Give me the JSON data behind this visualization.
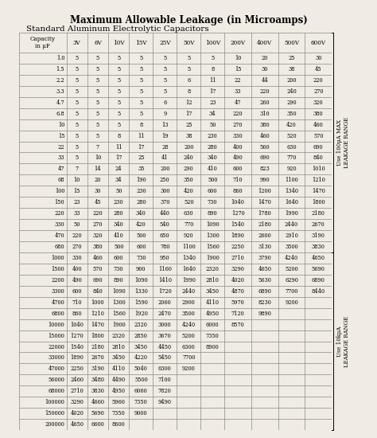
{
  "title": "Maximum Allowable Leakage (in Microamps)",
  "subtitle": "Standard Aluminum Electrolytic Capacitors",
  "columns": [
    "Capacity\nin μF",
    "3V",
    "6V",
    "10V",
    "15V",
    "25V",
    "50V",
    "100V",
    "200V",
    "400V",
    "500V",
    "600V"
  ],
  "rows": [
    [
      "1.0",
      "5",
      "5",
      "5",
      "5",
      "5",
      "5",
      "5",
      "10",
      "20",
      "25",
      "30"
    ],
    [
      "1.5",
      "5",
      "5",
      "5",
      "5",
      "5",
      "5",
      "8",
      "15",
      "30",
      "38",
      "45"
    ],
    [
      "2.2",
      "5",
      "5",
      "5",
      "5",
      "5",
      "6",
      "11",
      "22",
      "44",
      "200",
      "220"
    ],
    [
      "3.3",
      "5",
      "5",
      "5",
      "5",
      "5",
      "8",
      "17",
      "33",
      "220",
      "240",
      "270"
    ],
    [
      "4.7",
      "5",
      "5",
      "5",
      "5",
      "6",
      "12",
      "23",
      "47",
      "260",
      "290",
      "320"
    ],
    [
      "6.8",
      "5",
      "5",
      "5",
      "5",
      "9",
      "17",
      "34",
      "220",
      "310",
      "350",
      "380"
    ],
    [
      "10",
      "5",
      "5",
      "5",
      "8",
      "13",
      "25",
      "50",
      "270",
      "380",
      "420",
      "460"
    ],
    [
      "15",
      "5",
      "5",
      "8",
      "11",
      "19",
      "38",
      "230",
      "330",
      "460",
      "520",
      "570"
    ],
    [
      "22",
      "5",
      "7",
      "11",
      "17",
      "28",
      "200",
      "280",
      "400",
      "560",
      "630",
      "690"
    ],
    [
      "33",
      "5",
      "10",
      "17",
      "25",
      "41",
      "240",
      "340",
      "490",
      "690",
      "770",
      "840"
    ],
    [
      "47",
      "7",
      "14",
      "24",
      "35",
      "200",
      "290",
      "410",
      "600",
      "823",
      "920",
      "1010"
    ],
    [
      "68",
      "10",
      "20",
      "34",
      "190",
      "250",
      "350",
      "500",
      "710",
      "990",
      "1100",
      "1210"
    ],
    [
      "100",
      "15",
      "30",
      "50",
      "230",
      "300",
      "420",
      "600",
      "860",
      "1200",
      "1340",
      "1470"
    ],
    [
      "150",
      "23",
      "45",
      "230",
      "280",
      "370",
      "520",
      "730",
      "1040",
      "1470",
      "1640",
      "1800"
    ],
    [
      "220",
      "33",
      "220",
      "280",
      "340",
      "440",
      "630",
      "890",
      "1270",
      "1780",
      "1990",
      "2180"
    ],
    [
      "330",
      "50",
      "270",
      "340",
      "420",
      "540",
      "770",
      "1090",
      "1540",
      "2180",
      "2440",
      "2670"
    ],
    [
      "470",
      "220",
      "320",
      "410",
      "500",
      "650",
      "920",
      "1300",
      "1890",
      "2600",
      "2910",
      "3190"
    ],
    [
      "680",
      "270",
      "380",
      "500",
      "600",
      "780",
      "1100",
      "1560",
      "2250",
      "3130",
      "3500",
      "3830"
    ],
    [
      "1000",
      "330",
      "460",
      "600",
      "730",
      "950",
      "1340",
      "1900",
      "2710",
      "3790",
      "4240",
      "4650"
    ],
    [
      "1500",
      "400",
      "570",
      "730",
      "900",
      "1160",
      "1640",
      "2320",
      "3290",
      "4650",
      "5200",
      "5690"
    ],
    [
      "2200",
      "490",
      "690",
      "890",
      "1090",
      "1410",
      "1990",
      "2810",
      "4020",
      "5630",
      "6290",
      "6890"
    ],
    [
      "3300",
      "600",
      "840",
      "1090",
      "1330",
      "1720",
      "2440",
      "3450",
      "4870",
      "6890",
      "7700",
      "8440"
    ],
    [
      "4700",
      "710",
      "1000",
      "1300",
      "1590",
      "2060",
      "2900",
      "4110",
      "5970",
      "8230",
      "9200",
      ""
    ],
    [
      "6800",
      "860",
      "1210",
      "1560",
      "1920",
      "2470",
      "3500",
      "4950",
      "7120",
      "9890",
      "",
      ""
    ],
    [
      "10000",
      "1040",
      "1470",
      "1900",
      "2320",
      "3000",
      "4240",
      "6000",
      "8570",
      "",
      "",
      ""
    ],
    [
      "15000",
      "1270",
      "1800",
      "2320",
      "2850",
      "3670",
      "5200",
      "7350",
      "",
      "",
      "",
      ""
    ],
    [
      "22000",
      "1540",
      "2180",
      "2810",
      "3450",
      "4450",
      "6300",
      "8900",
      "",
      "",
      "",
      ""
    ],
    [
      "33000",
      "1890",
      "2670",
      "3450",
      "4220",
      "5450",
      "7700",
      "",
      "",
      "",
      "",
      ""
    ],
    [
      "47000",
      "2250",
      "3190",
      "4110",
      "5040",
      "6300",
      "9200",
      "",
      "",
      "",
      "",
      ""
    ],
    [
      "56000",
      "2460",
      "3480",
      "4490",
      "5500",
      "7100",
      "",
      "",
      "",
      "",
      "",
      ""
    ],
    [
      "68000",
      "2710",
      "3830",
      "4950",
      "6060",
      "7820",
      "",
      "",
      "",
      "",
      "",
      ""
    ],
    [
      "100000",
      "3290",
      "4660",
      "5960",
      "7350",
      "9490",
      "",
      "",
      "",
      "",
      "",
      ""
    ],
    [
      "150000",
      "4020",
      "5690",
      "7350",
      "9000",
      "",
      "",
      "",
      "",
      "",
      "",
      ""
    ],
    [
      "200000",
      "4650",
      "6600",
      "8600",
      "",
      "",
      "",
      "",
      "",
      "",
      "",
      ""
    ]
  ],
  "side_label_top": "Use 100μA MAX\nLEAKAGE RANGE",
  "side_label_bottom": "Use 10kμA\nLEAKAGE RANGE",
  "bg_color": "#f0ece4",
  "line_color": "#888888",
  "header_bg": "#ddd8cc"
}
